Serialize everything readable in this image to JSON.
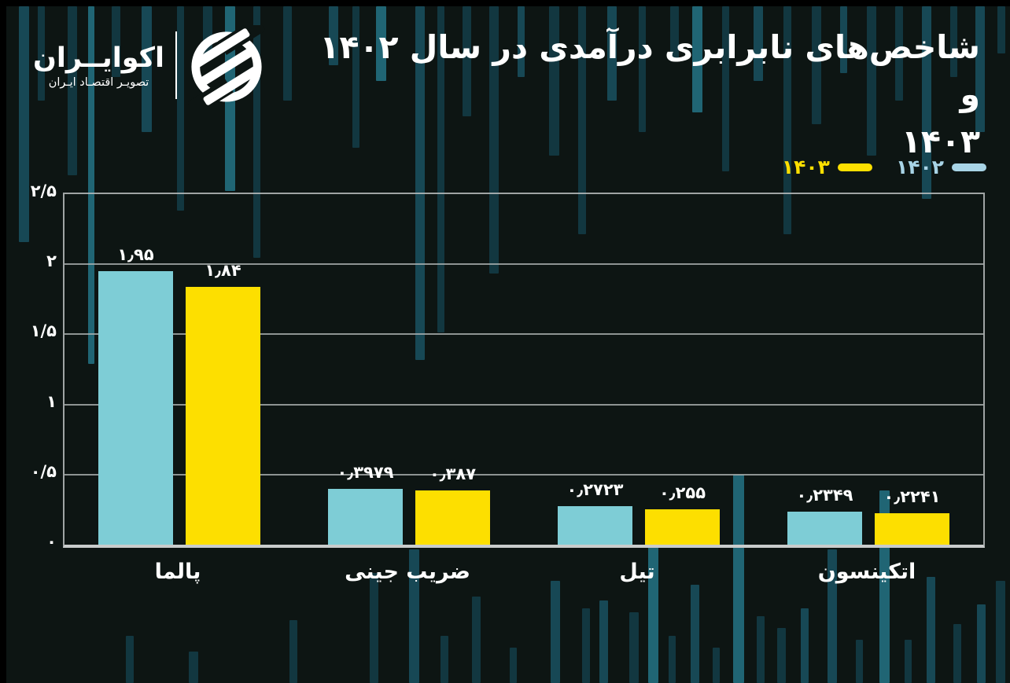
{
  "header": {
    "logo": {
      "name": "اکوایــران",
      "tagline": "تصویـر اقتصـاد ایـران"
    },
    "title": {
      "line1": "شاخص‌های نابرابری درآمدی در سال ۱۴۰۲ و",
      "line2": "۱۴۰۳"
    }
  },
  "legend": {
    "items": [
      {
        "label": "۱۴۰۳",
        "color": "#fddf00"
      },
      {
        "label": "۱۴۰۲",
        "color": "#a8d4e6"
      }
    ]
  },
  "chart_data": {
    "type": "bar",
    "title": "شاخص‌های نابرابری درآمدی در سال ۱۴۰۲ و ۱۴۰۳",
    "categories": [
      "پالما",
      "ضریب جینی",
      "تیل",
      "اتکینسون"
    ],
    "series": [
      {
        "name": "۱۴۰۲",
        "color": "#7ecdd6",
        "values": [
          1.95,
          0.3979,
          0.2723,
          0.2349
        ],
        "labels": [
          "۱٫۹۵",
          "۰٫۳۹۷۹",
          "۰٫۲۷۲۳",
          "۰٫۲۳۴۹"
        ]
      },
      {
        "name": "۱۴۰۳",
        "color": "#fddf00",
        "values": [
          1.84,
          0.387,
          0.255,
          0.2241
        ],
        "labels": [
          "۱٫۸۴",
          "۰٫۳۸۷",
          "۰٫۲۵۵",
          "۰٫۲۲۴۱"
        ]
      }
    ],
    "ylim": [
      0,
      2.5
    ],
    "yticks": [
      {
        "value": 2.5,
        "label": "۲/۵"
      },
      {
        "value": 2,
        "label": "۲"
      },
      {
        "value": 1.5,
        "label": "۱/۵"
      },
      {
        "value": 1,
        "label": "۱"
      },
      {
        "value": 0.5,
        "label": "۰/۵"
      },
      {
        "value": 0,
        "label": "۰"
      }
    ],
    "grid": true,
    "legend_position": "top-right"
  },
  "colors": {
    "background": "#0d1513",
    "grid": "#aeb4b4",
    "axis": "#c9cccc",
    "text": "#ffffff"
  }
}
